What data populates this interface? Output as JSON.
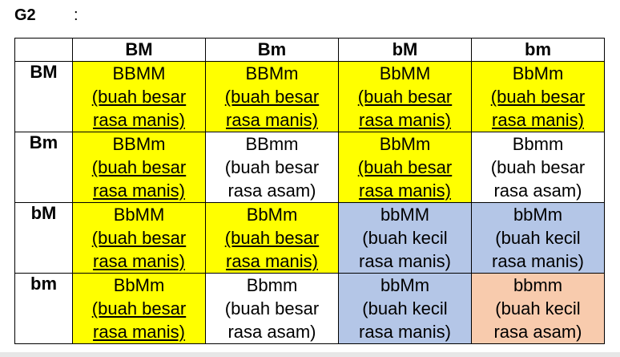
{
  "heading": {
    "label": "G2",
    "colon": ":"
  },
  "columns": [
    "BM",
    "Bm",
    "bM",
    "bm"
  ],
  "rows": [
    {
      "label": "BM",
      "cells": [
        {
          "genotype": "BBMM",
          "line1": "(buah besar",
          "line2": "rasa manis)",
          "color": "#ffff00"
        },
        {
          "genotype": "BBMm",
          "line1": "(buah besar",
          "line2": "rasa manis)",
          "color": "#ffff00"
        },
        {
          "genotype": "BbMM",
          "line1": "(buah besar",
          "line2": "rasa manis)",
          "color": "#ffff00"
        },
        {
          "genotype": "BbMm",
          "line1": "(buah besar",
          "line2": "rasa manis)",
          "color": "#ffff00"
        }
      ]
    },
    {
      "label": "Bm",
      "cells": [
        {
          "genotype": "BBMm",
          "line1": "(buah besar",
          "line2": "rasa manis)",
          "color": "#ffff00"
        },
        {
          "genotype": "BBmm",
          "line1": "(buah besar",
          "line2": "rasa asam)",
          "color": "#ffffff"
        },
        {
          "genotype": "BbMm",
          "line1": "(buah besar",
          "line2": "rasa manis)",
          "color": "#ffff00"
        },
        {
          "genotype": "Bbmm",
          "line1": "(buah besar",
          "line2": "rasa asam)",
          "color": "#ffffff"
        }
      ]
    },
    {
      "label": "bM",
      "cells": [
        {
          "genotype": "BbMM",
          "line1": "(buah besar",
          "line2": "rasa manis)",
          "color": "#ffff00"
        },
        {
          "genotype": "BbMm",
          "line1": "(buah besar",
          "line2": "rasa manis)",
          "color": "#ffff00"
        },
        {
          "genotype": "bbMM",
          "line1": "(buah kecil",
          "line2": "rasa manis)",
          "color": "#b4c6e7"
        },
        {
          "genotype": "bbMm",
          "line1": "(buah kecil",
          "line2": "rasa manis)",
          "color": "#b4c6e7"
        }
      ]
    },
    {
      "label": "bm",
      "cells": [
        {
          "genotype": "BbMm",
          "line1": "(buah besar",
          "line2": "rasa manis)",
          "color": "#ffff00"
        },
        {
          "genotype": "Bbmm",
          "line1": "(buah besar",
          "line2": "rasa asam)",
          "color": "#ffffff"
        },
        {
          "genotype": "bbMm",
          "line1": "(buah kecil",
          "line2": "rasa manis)",
          "color": "#b4c6e7"
        },
        {
          "genotype": "bbmm",
          "line1": "(buah kecil",
          "line2": "rasa asam)",
          "color": "#f8cbad"
        }
      ]
    }
  ]
}
